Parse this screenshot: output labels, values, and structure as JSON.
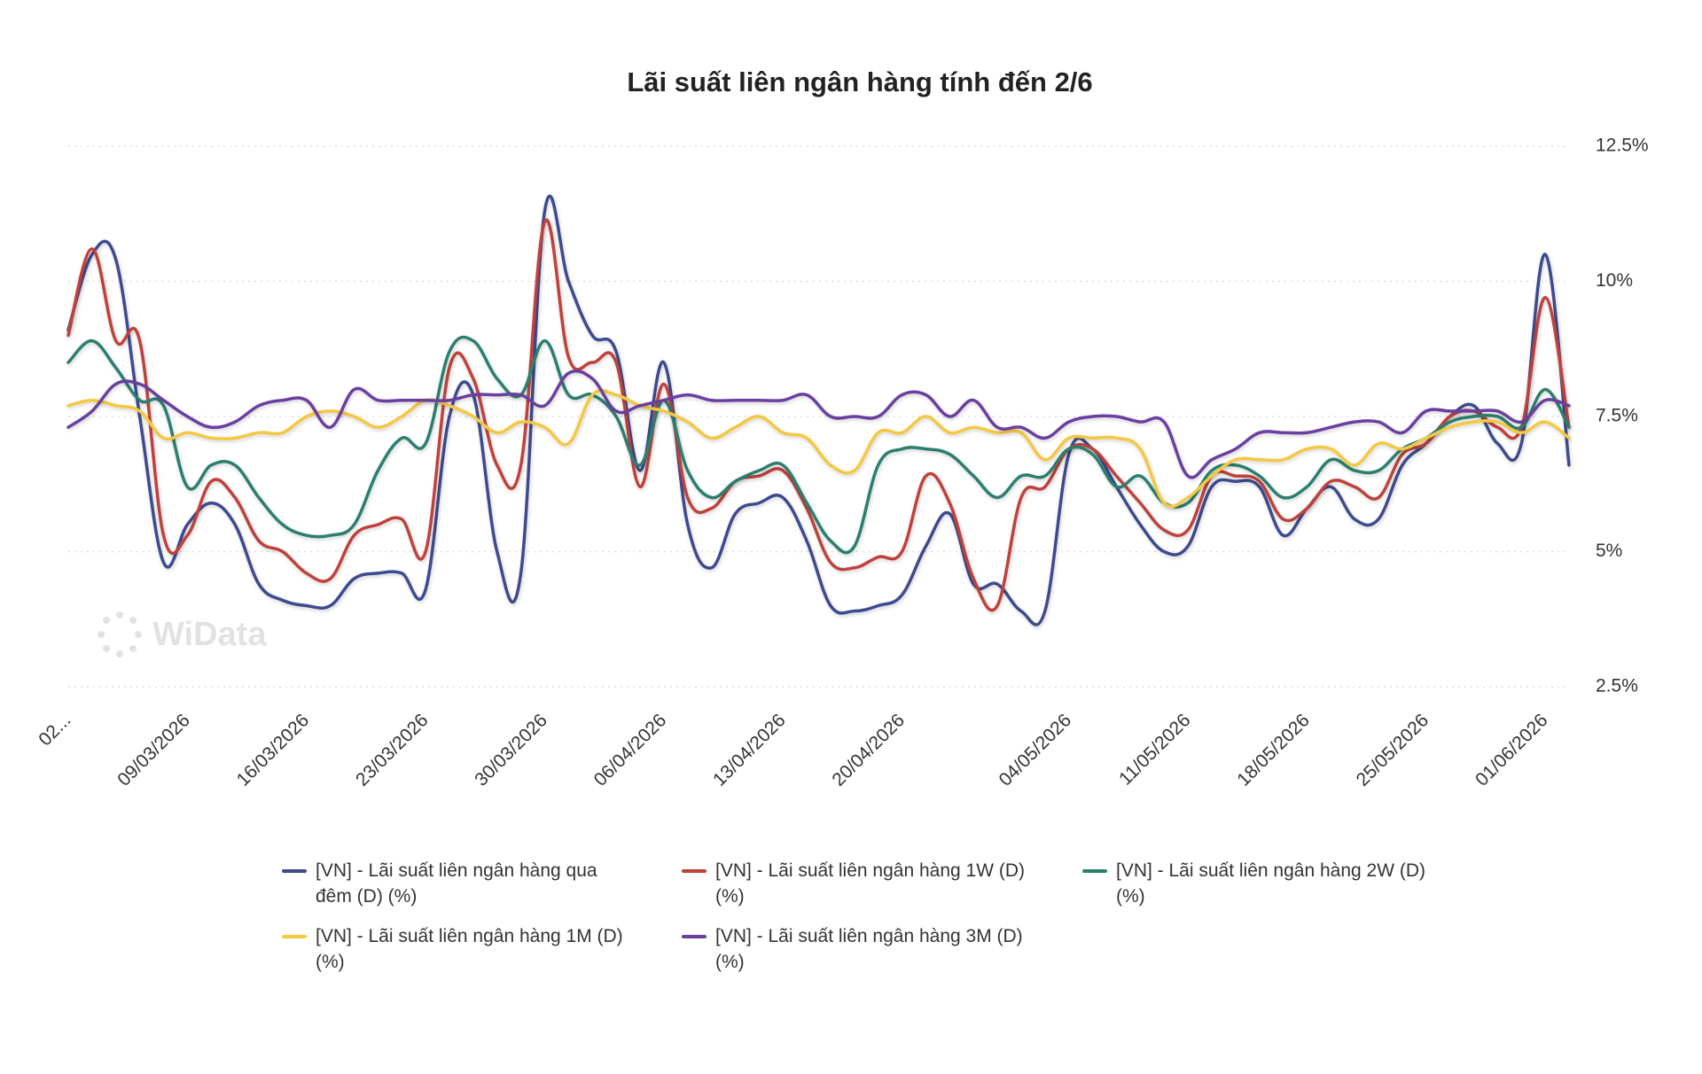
{
  "chart_data": {
    "type": "line",
    "title": "Lãi suất liên ngân hàng tính đến 2/6",
    "watermark": "WiData",
    "categories": [
      "02...",
      null,
      null,
      null,
      null,
      "09/03/2026",
      null,
      null,
      null,
      null,
      "16/03/2026",
      null,
      null,
      null,
      null,
      "23/03/2026",
      null,
      null,
      null,
      null,
      "30/03/2026",
      null,
      null,
      null,
      null,
      "06/04/2026",
      null,
      null,
      null,
      null,
      "13/04/2026",
      null,
      null,
      null,
      null,
      "20/04/2026",
      null,
      null,
      null,
      null,
      null,
      null,
      "04/05/2026",
      null,
      null,
      null,
      null,
      "11/05/2026",
      null,
      null,
      null,
      null,
      "18/05/2026",
      null,
      null,
      null,
      null,
      "25/05/2026",
      null,
      null,
      null,
      null,
      "01/06/2026",
      null
    ],
    "ylim": [
      2.5,
      12.5
    ],
    "yticks": [
      {
        "value": 2.5,
        "label": "2.5%"
      },
      {
        "value": 5,
        "label": "5%"
      },
      {
        "value": 7.5,
        "label": "7.5%"
      },
      {
        "value": 10,
        "label": "10%"
      },
      {
        "value": 12.5,
        "label": "12.5%"
      }
    ],
    "grid": true,
    "legend": "bottom",
    "series": [
      {
        "name": "[VN] - Lãi suất liên ngân hàng qua đêm (D) (%)",
        "color": "#3d4a8f",
        "values": [
          9.1,
          10.5,
          10.4,
          7.5,
          4.8,
          5.5,
          5.9,
          5.5,
          4.4,
          4.1,
          4.0,
          4.0,
          4.5,
          4.6,
          4.6,
          4.3,
          7.5,
          7.9,
          5.0,
          4.6,
          11.3,
          10.0,
          9.0,
          8.7,
          6.5,
          8.5,
          5.5,
          4.7,
          5.7,
          5.9,
          6.0,
          5.2,
          4.0,
          3.9,
          4.0,
          4.2,
          5.1,
          5.7,
          4.4,
          4.4,
          3.9,
          3.9,
          6.8,
          6.9,
          6.2,
          5.5,
          5.0,
          5.1,
          6.2,
          6.3,
          6.2,
          5.3,
          5.8,
          6.2,
          5.6,
          5.6,
          6.6,
          7.0,
          7.5,
          7.7,
          7.0,
          7.0,
          10.5,
          6.6
        ]
      },
      {
        "name": "[VN] - Lãi suất liên ngân hàng 1W (D) (%)",
        "color": "#c0413b",
        "values": [
          9.0,
          10.6,
          8.9,
          8.9,
          5.3,
          5.3,
          6.3,
          6.0,
          5.2,
          5.0,
          4.6,
          4.5,
          5.3,
          5.5,
          5.6,
          5.0,
          8.4,
          8.2,
          6.6,
          6.6,
          11.1,
          8.6,
          8.5,
          8.5,
          6.2,
          8.1,
          6.0,
          5.8,
          6.3,
          6.4,
          6.5,
          5.8,
          4.8,
          4.7,
          4.9,
          5.0,
          6.4,
          5.9,
          4.5,
          4.0,
          6.0,
          6.2,
          6.9,
          6.9,
          6.4,
          5.9,
          5.4,
          5.4,
          6.4,
          6.4,
          6.3,
          5.6,
          5.8,
          6.3,
          6.2,
          6.0,
          6.8,
          7.0,
          7.5,
          7.6,
          7.3,
          7.3,
          9.7,
          7.3
        ]
      },
      {
        "name": "[VN] - Lãi suất liên ngân hàng 2W (D) (%)",
        "color": "#2a7f6f",
        "values": [
          8.5,
          8.9,
          8.4,
          7.8,
          7.7,
          6.2,
          6.6,
          6.6,
          6.0,
          5.5,
          5.3,
          5.3,
          5.5,
          6.5,
          7.1,
          7.0,
          8.7,
          8.9,
          8.2,
          7.9,
          8.9,
          7.9,
          7.9,
          7.5,
          6.6,
          7.8,
          6.5,
          6.0,
          6.3,
          6.5,
          6.6,
          5.9,
          5.2,
          5.1,
          6.6,
          6.9,
          6.9,
          6.8,
          6.4,
          6.0,
          6.4,
          6.4,
          6.9,
          6.8,
          6.2,
          6.4,
          5.9,
          5.9,
          6.5,
          6.6,
          6.4,
          6.0,
          6.2,
          6.7,
          6.5,
          6.5,
          6.9,
          7.1,
          7.4,
          7.5,
          7.5,
          7.3,
          8.0,
          7.3
        ]
      },
      {
        "name": "[VN] - Lãi suất liên ngân hàng 1M (D) (%)",
        "color": "#f5c842",
        "values": [
          7.7,
          7.8,
          7.7,
          7.6,
          7.1,
          7.2,
          7.1,
          7.1,
          7.2,
          7.2,
          7.5,
          7.6,
          7.5,
          7.3,
          7.5,
          7.8,
          7.7,
          7.5,
          7.2,
          7.4,
          7.3,
          7.0,
          7.9,
          7.9,
          7.7,
          7.6,
          7.4,
          7.1,
          7.3,
          7.5,
          7.2,
          7.1,
          6.6,
          6.5,
          7.2,
          7.2,
          7.5,
          7.2,
          7.3,
          7.2,
          7.2,
          6.7,
          7.1,
          7.1,
          7.1,
          6.9,
          5.9,
          6.0,
          6.4,
          6.7,
          6.7,
          6.7,
          6.9,
          6.9,
          6.6,
          7.0,
          6.9,
          7.1,
          7.3,
          7.4,
          7.4,
          7.2,
          7.4,
          7.1
        ]
      },
      {
        "name": "[VN] - Lãi suất liên ngân hàng 3M (D) (%)",
        "color": "#6a3fa0",
        "values": [
          7.3,
          7.6,
          8.1,
          8.1,
          7.8,
          7.5,
          7.3,
          7.4,
          7.7,
          7.8,
          7.8,
          7.3,
          8.0,
          7.8,
          7.8,
          7.8,
          7.8,
          7.9,
          7.9,
          7.9,
          7.7,
          8.3,
          8.2,
          7.6,
          7.7,
          7.8,
          7.9,
          7.8,
          7.8,
          7.8,
          7.8,
          7.9,
          7.5,
          7.5,
          7.5,
          7.9,
          7.9,
          7.5,
          7.8,
          7.3,
          7.3,
          7.1,
          7.4,
          7.5,
          7.5,
          7.4,
          7.4,
          6.4,
          6.7,
          6.9,
          7.2,
          7.2,
          7.2,
          7.3,
          7.4,
          7.4,
          7.2,
          7.6,
          7.6,
          7.6,
          7.6,
          7.4,
          7.8,
          7.7
        ]
      }
    ]
  }
}
